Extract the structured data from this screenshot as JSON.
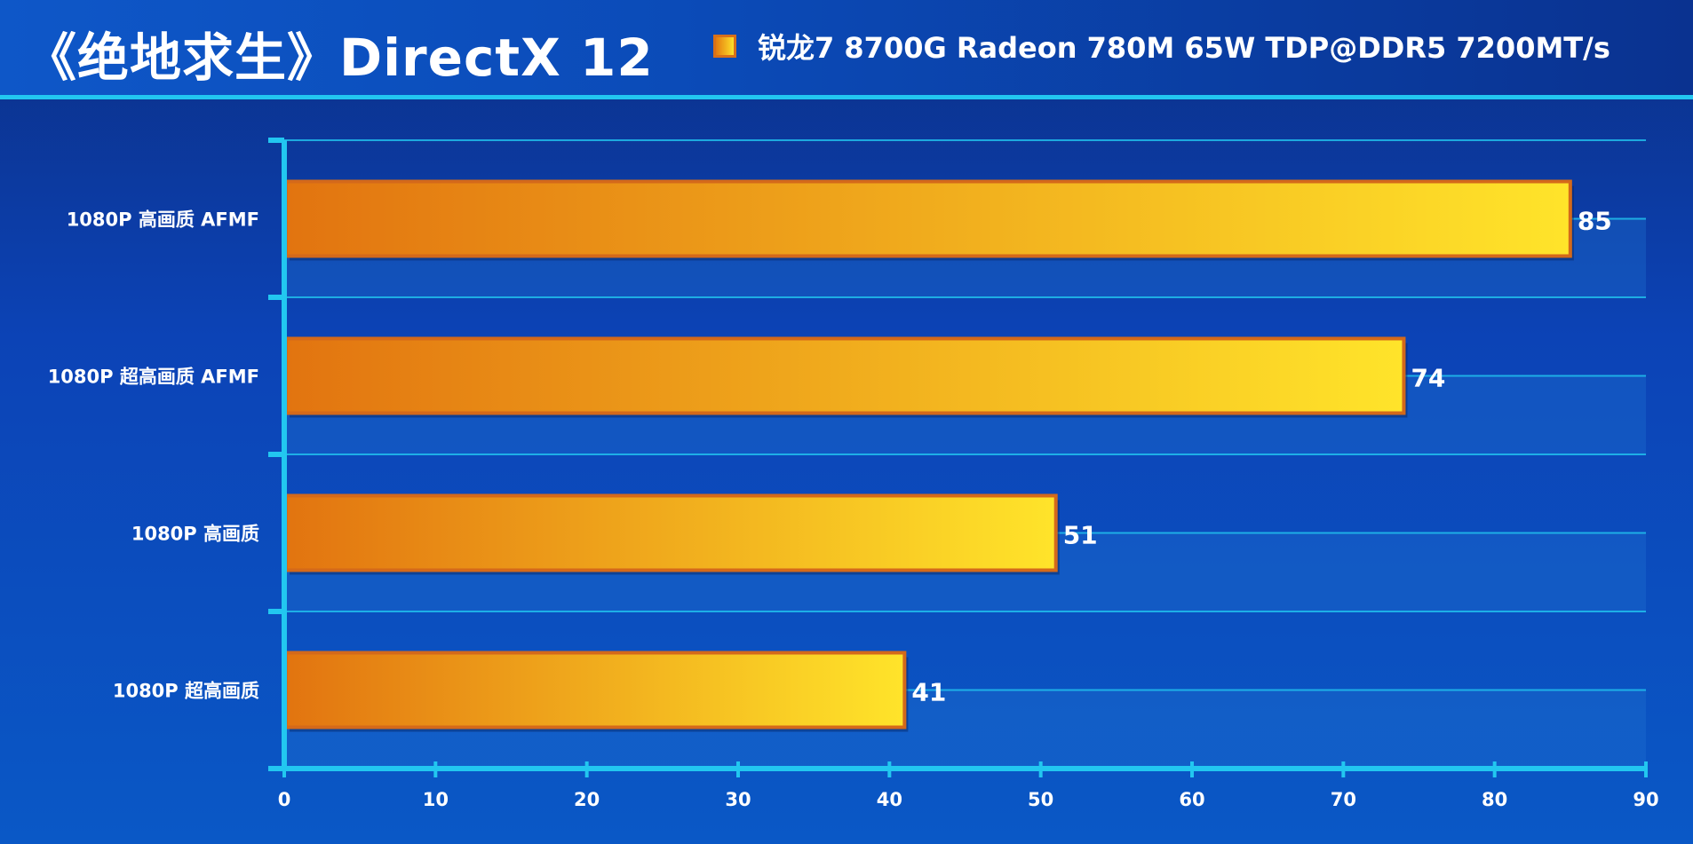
{
  "chart_data": {
    "type": "bar",
    "orientation": "horizontal",
    "title": "《绝地求生》DirectX 12",
    "categories": [
      "1080P 高画质 AFMF",
      "1080P 超高画质 AFMF",
      "1080P 高画质",
      "1080P 超高画质"
    ],
    "series": [
      {
        "name": "锐龙7 8700G Radeon 780M 65W TDP@DDR5 7200MT/s",
        "values": [
          85,
          74,
          51,
          41
        ]
      }
    ],
    "xlim": [
      0,
      90
    ],
    "xticks": [
      "0",
      "10",
      "20",
      "30",
      "40",
      "50",
      "60",
      "70",
      "80",
      "90"
    ],
    "grid": true,
    "legend_position": "top-right",
    "colors": {
      "bar_start": "#e27410",
      "bar_end": "#ffe42a",
      "bar_border": "#d4691a",
      "axis": "#22c7f0",
      "text": "#ffffff"
    }
  }
}
